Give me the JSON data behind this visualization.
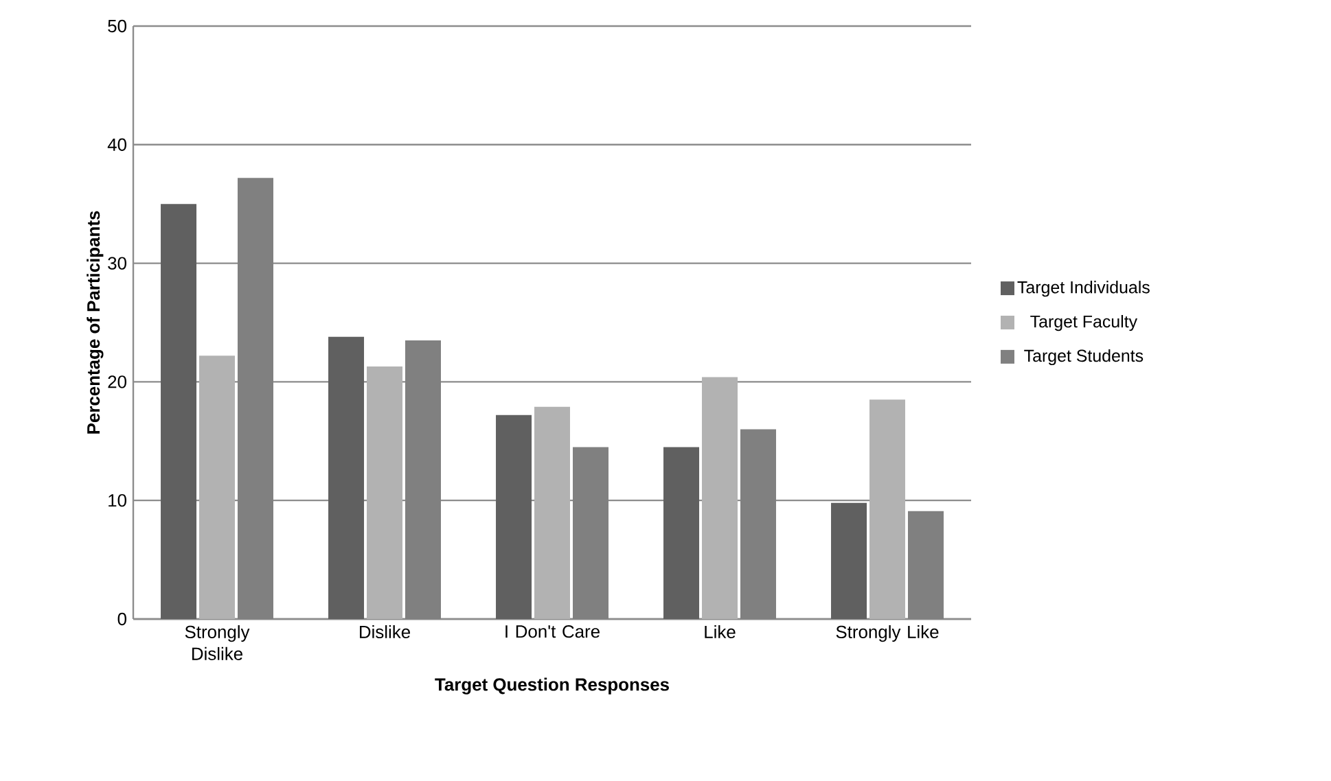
{
  "chart_data": {
    "type": "bar",
    "xlabel": "Target Question Responses",
    "ylabel": "Percentage of Participants",
    "categories": [
      "Strongly Dislike",
      "Dislike",
      "I Don't Care",
      "Like",
      "Strongly Like"
    ],
    "series": [
      {
        "name": "Target Individuals",
        "color": "#606060",
        "values": [
          35.0,
          23.8,
          17.2,
          14.5,
          9.8
        ]
      },
      {
        "name": "Target Faculty",
        "color": "#b2b2b2",
        "values": [
          22.2,
          21.3,
          17.9,
          20.4,
          18.5
        ]
      },
      {
        "name": "Target Students",
        "color": "#808080",
        "values": [
          37.2,
          23.5,
          14.5,
          16.0,
          9.1
        ]
      }
    ],
    "ylim": [
      0,
      50
    ],
    "yticks": [
      0,
      10,
      20,
      30,
      40,
      50
    ],
    "grid": "y",
    "legend": "right"
  }
}
